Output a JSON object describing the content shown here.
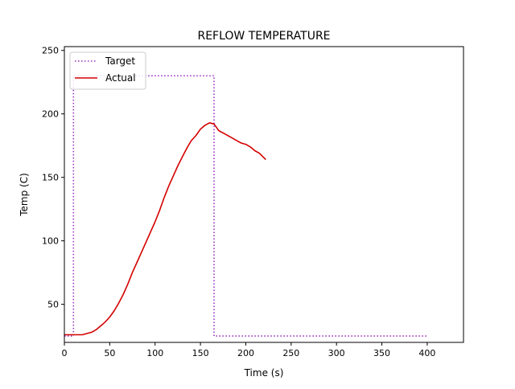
{
  "chart_data": {
    "type": "line",
    "title": "REFLOW TEMPERATURE",
    "xlabel": "Time (s)",
    "ylabel": "Temp (C)",
    "xlim": [
      0,
      440
    ],
    "ylim": [
      20,
      253
    ],
    "xticks": [
      0,
      50,
      100,
      150,
      200,
      250,
      300,
      350,
      400
    ],
    "yticks": [
      50,
      100,
      150,
      200,
      250
    ],
    "grid": false,
    "legend": "top-left",
    "series": [
      {
        "name": "Target",
        "style": "dotted",
        "color": "#9b30c0",
        "x": [
          0,
          10,
          10,
          165,
          165,
          400
        ],
        "y": [
          25,
          25,
          230,
          230,
          25,
          25
        ]
      },
      {
        "name": "Actual",
        "style": "solid",
        "color": "#d40000",
        "x": [
          0,
          5,
          10,
          15,
          20,
          25,
          30,
          35,
          40,
          45,
          50,
          55,
          60,
          65,
          70,
          75,
          80,
          85,
          90,
          95,
          100,
          105,
          110,
          115,
          120,
          125,
          130,
          135,
          140,
          145,
          150,
          155,
          160,
          165,
          168,
          170,
          172,
          175,
          180,
          185,
          190,
          195,
          200,
          205,
          210,
          215,
          222
        ],
        "y": [
          26,
          26,
          26,
          26,
          26,
          27,
          28,
          30,
          33,
          36,
          40,
          45,
          51,
          58,
          66,
          75,
          83,
          91,
          99,
          107,
          115,
          124,
          134,
          143,
          151,
          159,
          166,
          173,
          179,
          183,
          188,
          191,
          193,
          192,
          189,
          187,
          186,
          185,
          183,
          181,
          179,
          177,
          176,
          174,
          171,
          169,
          164
        ]
      }
    ]
  }
}
